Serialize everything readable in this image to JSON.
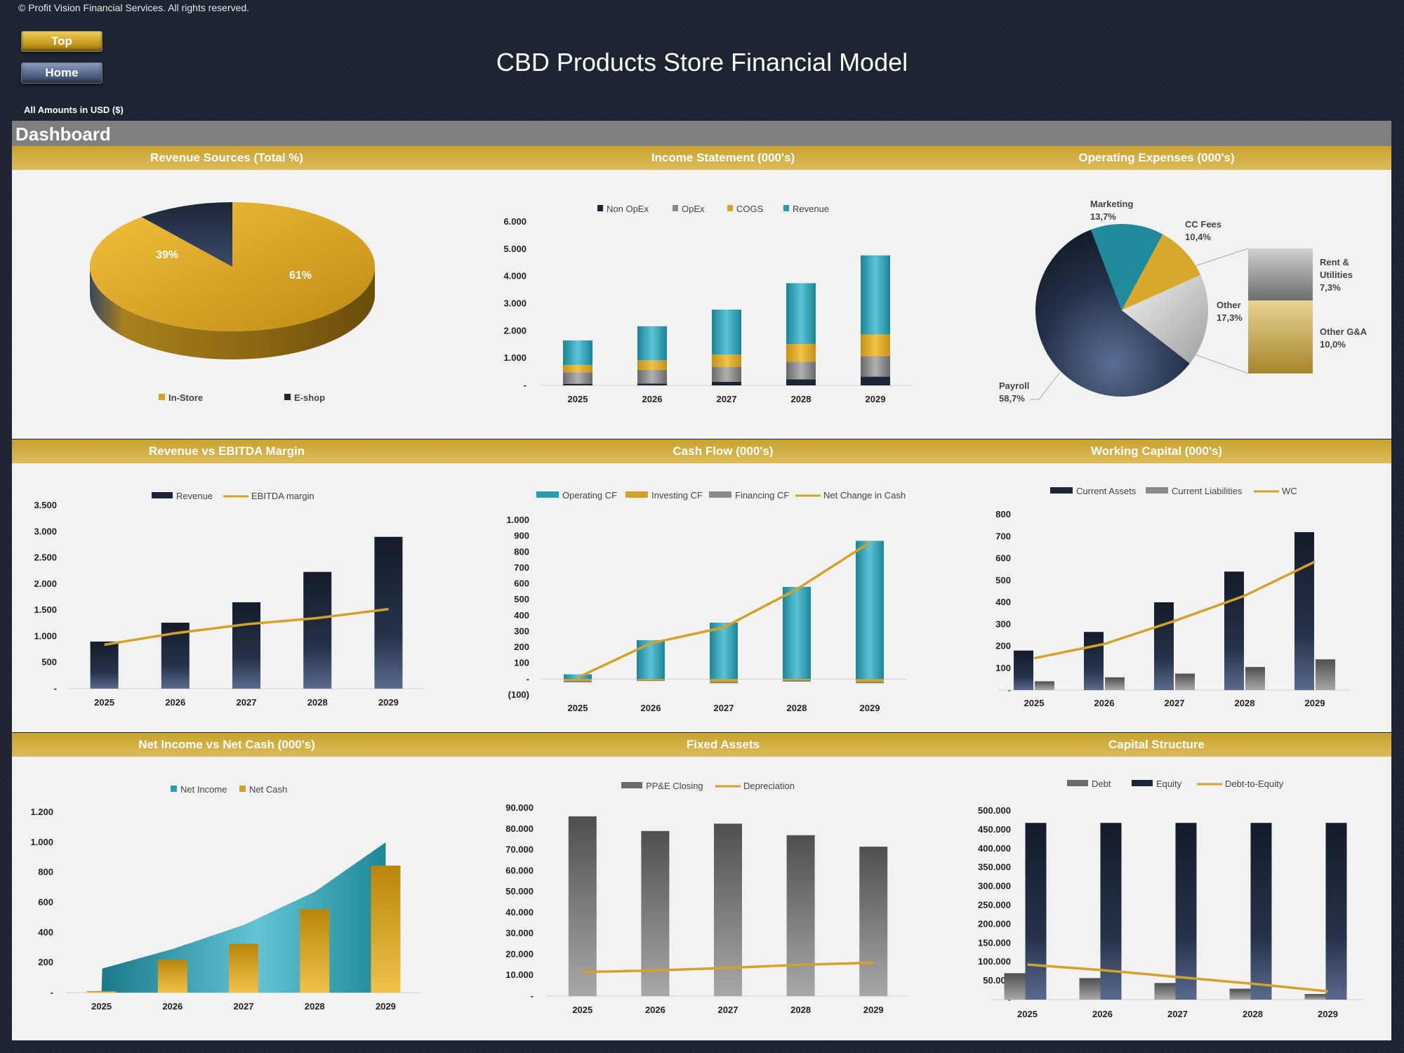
{
  "copyright": "© Profit Vision Financial Services. All rights reserved.",
  "nav": {
    "top_label": "Top",
    "home_label": "Home"
  },
  "title": "CBD Products Store Financial Model",
  "amounts_note": "All Amounts in  USD ($)",
  "dashboard_label": "Dashboard",
  "colors": {
    "gold": "#d2a52a",
    "navy": "#1c2638",
    "teal": "#2a9aae",
    "grey": "#8a8a8a"
  },
  "chart_data": [
    {
      "id": "revenue-sources",
      "type": "pie",
      "title": "Revenue Sources (Total %)",
      "slices": [
        {
          "name": "In-Store",
          "value": 61,
          "label": "61%"
        },
        {
          "name": "E-shop",
          "value": 39,
          "label": "39%"
        }
      ]
    },
    {
      "id": "income-statement",
      "type": "bar",
      "stacked": true,
      "title": "Income Statement (000's)",
      "categories": [
        "2025",
        "2026",
        "2027",
        "2028",
        "2029"
      ],
      "ylim": [
        0,
        6000
      ],
      "yticks": [
        "-",
        "1.000",
        "2.000",
        "3.000",
        "4.000",
        "5.000",
        "6.000"
      ],
      "series": [
        {
          "name": "Non OpEx",
          "values": [
            60,
            70,
            130,
            220,
            320
          ]
        },
        {
          "name": "OpEx",
          "values": [
            420,
            500,
            550,
            650,
            750
          ]
        },
        {
          "name": "COGS",
          "values": [
            270,
            350,
            450,
            650,
            800
          ]
        },
        {
          "name": "Revenue",
          "values": [
            900,
            1250,
            1650,
            2230,
            2900
          ]
        }
      ]
    },
    {
      "id": "operating-expenses",
      "type": "pie",
      "title": "Operating Expenses (000's)",
      "slices": [
        {
          "name": "Payroll",
          "value": 58.7,
          "label": "58,7%"
        },
        {
          "name": "Marketing",
          "value": 13.7,
          "label": "13,7%"
        },
        {
          "name": "CC Fees",
          "value": 10.4,
          "label": "10,4%"
        },
        {
          "name": "Other",
          "value": 17.3,
          "label": "17,3%"
        }
      ],
      "other_breakdown": [
        {
          "name": "Rent & Utilities",
          "value": 7.3,
          "label": "7,3%"
        },
        {
          "name": "Other G&A",
          "value": 10.0,
          "label": "10,0%"
        }
      ]
    },
    {
      "id": "revenue-vs-ebitda",
      "type": "bar",
      "title": "Revenue vs EBITDA Margin",
      "categories": [
        "2025",
        "2026",
        "2027",
        "2028",
        "2029"
      ],
      "ylim": [
        0,
        3500
      ],
      "yticks": [
        "-",
        "500",
        "1.000",
        "1.500",
        "2.000",
        "2.500",
        "3.000",
        "3.500"
      ],
      "series": [
        {
          "name": "Revenue",
          "values": [
            900,
            1260,
            1650,
            2230,
            2900
          ]
        },
        {
          "name": "EBITDA margin",
          "values": [
            840,
            1060,
            1230,
            1350,
            1520
          ]
        }
      ]
    },
    {
      "id": "cash-flow",
      "type": "bar",
      "title": "Cash Flow (000's)",
      "categories": [
        "2025",
        "2026",
        "2027",
        "2028",
        "2029"
      ],
      "ylim": [
        -100,
        1000
      ],
      "yticks": [
        "(100)",
        "-",
        "100",
        "200",
        "300",
        "400",
        "500",
        "600",
        "700",
        "800",
        "900",
        "1.000"
      ],
      "series": [
        {
          "name": "Operating CF",
          "values": [
            30,
            245,
            355,
            580,
            870
          ]
        },
        {
          "name": "Investing CF",
          "values": [
            -12,
            -8,
            -18,
            -8,
            -18
          ]
        },
        {
          "name": "Financing CF",
          "values": [
            -8,
            -4,
            -8,
            -8,
            -8
          ]
        },
        {
          "name": "Net Change in Cash",
          "values": [
            10,
            225,
            325,
            565,
            860
          ]
        }
      ]
    },
    {
      "id": "working-capital",
      "type": "bar",
      "title": "Working Capital (000's)",
      "categories": [
        "2025",
        "2026",
        "2027",
        "2028",
        "2029"
      ],
      "ylim": [
        0,
        800
      ],
      "yticks": [
        "-",
        "100",
        "200",
        "300",
        "400",
        "500",
        "600",
        "700",
        "800"
      ],
      "series": [
        {
          "name": "Current Assets",
          "values": [
            180,
            265,
            400,
            540,
            720
          ]
        },
        {
          "name": "Current Liabilities",
          "values": [
            40,
            58,
            75,
            105,
            140
          ]
        },
        {
          "name": "WC",
          "values": [
            145,
            210,
            315,
            430,
            585
          ]
        }
      ]
    },
    {
      "id": "net-income-vs-cash",
      "type": "area",
      "title": "Net Income vs Net Cash (000's)",
      "categories": [
        "2025",
        "2026",
        "2027",
        "2028",
        "2029"
      ],
      "ylim": [
        0,
        1200
      ],
      "yticks": [
        "-",
        "200",
        "400",
        "600",
        "800",
        "1.000",
        "1.200"
      ],
      "series": [
        {
          "name": "Net Income",
          "values": [
            160,
            290,
            450,
            670,
            1000
          ]
        },
        {
          "name": "Net Cash",
          "values": [
            10,
            220,
            325,
            555,
            845
          ]
        }
      ]
    },
    {
      "id": "fixed-assets",
      "type": "bar",
      "title": "Fixed Assets",
      "categories": [
        "2025",
        "2026",
        "2027",
        "2028",
        "2029"
      ],
      "ylim": [
        0,
        90000
      ],
      "yticks": [
        "-",
        "10.000",
        "20.000",
        "30.000",
        "40.000",
        "50.000",
        "60.000",
        "70.000",
        "80.000",
        "90.000"
      ],
      "series": [
        {
          "name": "PP&E Closing",
          "values": [
            86000,
            79000,
            82500,
            77000,
            71500
          ]
        },
        {
          "name": "Depreciation",
          "values": [
            11500,
            12300,
            13500,
            15000,
            16000
          ]
        }
      ]
    },
    {
      "id": "capital-structure",
      "type": "bar",
      "title": "Capital Structure",
      "categories": [
        "2025",
        "2026",
        "2027",
        "2028",
        "2029"
      ],
      "ylim": [
        0,
        500000
      ],
      "yticks": [
        "-",
        "50.000",
        "100.000",
        "150.000",
        "200.000",
        "250.000",
        "300.000",
        "350.000",
        "400.000",
        "450.000",
        "500.000"
      ],
      "series": [
        {
          "name": "Debt",
          "values": [
            70000,
            57000,
            44000,
            29000,
            15000
          ]
        },
        {
          "name": "Equity",
          "values": [
            468000,
            468000,
            468000,
            468000,
            468000
          ]
        },
        {
          "name": "Debt-to-Equity",
          "values": [
            93000,
            78000,
            60000,
            42000,
            22000
          ]
        }
      ]
    }
  ]
}
